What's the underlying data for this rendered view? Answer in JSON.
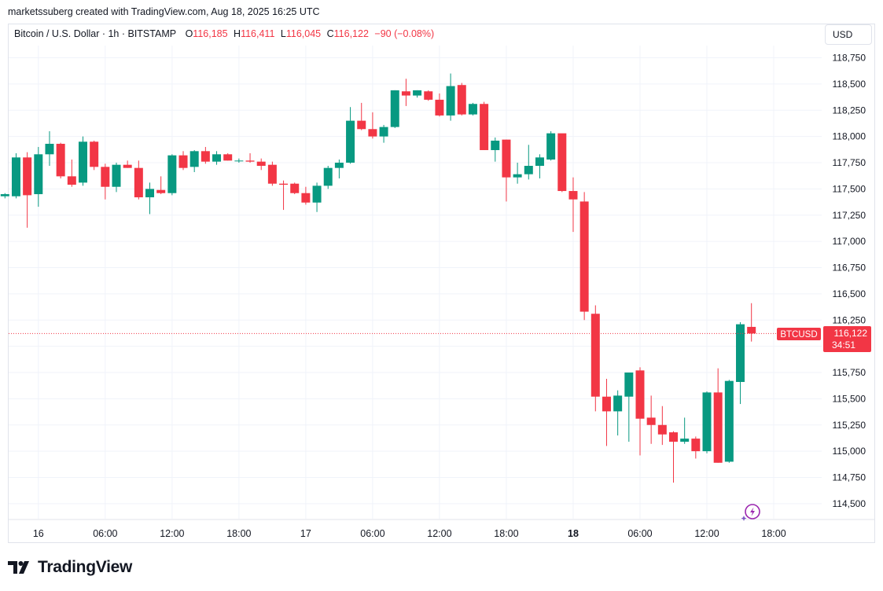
{
  "header": {
    "credit": "marketssuberg created with TradingView.com, Aug 18, 2025 16:25 UTC"
  },
  "legend": {
    "symbol": "Bitcoin / U.S. Dollar · 1h · BITSTAMP",
    "o_label": "O",
    "o_value": "116,185",
    "h_label": "H",
    "h_value": "116,411",
    "l_label": "L",
    "l_value": "116,045",
    "c_label": "C",
    "c_value": "116,122",
    "change": "−90 (−0.08%)"
  },
  "currency_button": "USD",
  "price_tag": {
    "symbol": "BTCUSD",
    "price": "116,122",
    "countdown": "34:51"
  },
  "brand": {
    "name": "TradingView"
  },
  "colors": {
    "up": "#089981",
    "down": "#f23645",
    "grid": "#f0f3fa",
    "text": "#131722"
  },
  "chart_data": {
    "type": "candlestick",
    "symbol": "BTCUSD",
    "timeframe": "1h",
    "ylim": [
      114400,
      118900
    ],
    "y_ticks": [
      "118,750",
      "118,500",
      "118,250",
      "118,000",
      "117,750",
      "117,500",
      "117,250",
      "117,000",
      "116,750",
      "116,500",
      "116,250",
      "116,000",
      "115,750",
      "115,500",
      "115,250",
      "115,000",
      "114,750",
      "114,500"
    ],
    "y_tick_values": [
      118750,
      118500,
      118250,
      118000,
      117750,
      117500,
      117250,
      117000,
      116750,
      116500,
      116250,
      116000,
      115750,
      115500,
      115250,
      115000,
      114750,
      114500
    ],
    "x_ticks": [
      {
        "label": "16",
        "bar": 3,
        "bold": false
      },
      {
        "label": "06:00",
        "bar": 9,
        "bold": false
      },
      {
        "label": "12:00",
        "bar": 15,
        "bold": false
      },
      {
        "label": "18:00",
        "bar": 21,
        "bold": false
      },
      {
        "label": "17",
        "bar": 27,
        "bold": false
      },
      {
        "label": "06:00",
        "bar": 33,
        "bold": false
      },
      {
        "label": "12:00",
        "bar": 39,
        "bold": false
      },
      {
        "label": "18:00",
        "bar": 45,
        "bold": false
      },
      {
        "label": "18",
        "bar": 51,
        "bold": true
      },
      {
        "label": "06:00",
        "bar": 57,
        "bold": false
      },
      {
        "label": "12:00",
        "bar": 63,
        "bold": false
      },
      {
        "label": "18:00",
        "bar": 69,
        "bold": false
      }
    ],
    "last_price": 116122,
    "candles": [
      {
        "o": 117430,
        "h": 117460,
        "l": 117410,
        "c": 117450
      },
      {
        "o": 117430,
        "h": 117840,
        "l": 117410,
        "c": 117800
      },
      {
        "o": 117800,
        "h": 117850,
        "l": 117130,
        "c": 117440
      },
      {
        "o": 117450,
        "h": 117900,
        "l": 117330,
        "c": 117830
      },
      {
        "o": 117830,
        "h": 118050,
        "l": 117720,
        "c": 117930
      },
      {
        "o": 117930,
        "h": 117940,
        "l": 117600,
        "c": 117620
      },
      {
        "o": 117620,
        "h": 117780,
        "l": 117520,
        "c": 117540
      },
      {
        "o": 117560,
        "h": 118000,
        "l": 117530,
        "c": 117950
      },
      {
        "o": 117950,
        "h": 117960,
        "l": 117680,
        "c": 117710
      },
      {
        "o": 117710,
        "h": 117740,
        "l": 117400,
        "c": 117520
      },
      {
        "o": 117520,
        "h": 117750,
        "l": 117470,
        "c": 117730
      },
      {
        "o": 117730,
        "h": 117770,
        "l": 117700,
        "c": 117700
      },
      {
        "o": 117700,
        "h": 117770,
        "l": 117400,
        "c": 117420
      },
      {
        "o": 117420,
        "h": 117560,
        "l": 117260,
        "c": 117500
      },
      {
        "o": 117490,
        "h": 117620,
        "l": 117450,
        "c": 117460
      },
      {
        "o": 117460,
        "h": 117830,
        "l": 117440,
        "c": 117820
      },
      {
        "o": 117820,
        "h": 117860,
        "l": 117680,
        "c": 117700
      },
      {
        "o": 117710,
        "h": 117870,
        "l": 117660,
        "c": 117860
      },
      {
        "o": 117860,
        "h": 117900,
        "l": 117740,
        "c": 117760
      },
      {
        "o": 117760,
        "h": 117860,
        "l": 117730,
        "c": 117830
      },
      {
        "o": 117830,
        "h": 117840,
        "l": 117770,
        "c": 117770
      },
      {
        "o": 117770,
        "h": 117790,
        "l": 117750,
        "c": 117770
      },
      {
        "o": 117770,
        "h": 117840,
        "l": 117750,
        "c": 117760
      },
      {
        "o": 117760,
        "h": 117790,
        "l": 117680,
        "c": 117720
      },
      {
        "o": 117730,
        "h": 117760,
        "l": 117530,
        "c": 117550
      },
      {
        "o": 117550,
        "h": 117580,
        "l": 117300,
        "c": 117540
      },
      {
        "o": 117550,
        "h": 117560,
        "l": 117450,
        "c": 117460
      },
      {
        "o": 117460,
        "h": 117520,
        "l": 117350,
        "c": 117370
      },
      {
        "o": 117370,
        "h": 117560,
        "l": 117280,
        "c": 117530
      },
      {
        "o": 117530,
        "h": 117720,
        "l": 117500,
        "c": 117700
      },
      {
        "o": 117700,
        "h": 117780,
        "l": 117600,
        "c": 117750
      },
      {
        "o": 117750,
        "h": 118280,
        "l": 117740,
        "c": 118150
      },
      {
        "o": 118150,
        "h": 118320,
        "l": 118060,
        "c": 118070
      },
      {
        "o": 118070,
        "h": 118230,
        "l": 117980,
        "c": 118000
      },
      {
        "o": 118000,
        "h": 118110,
        "l": 117940,
        "c": 118090
      },
      {
        "o": 118090,
        "h": 118440,
        "l": 118080,
        "c": 118440
      },
      {
        "o": 118430,
        "h": 118550,
        "l": 118290,
        "c": 118390
      },
      {
        "o": 118390,
        "h": 118440,
        "l": 118370,
        "c": 118440
      },
      {
        "o": 118430,
        "h": 118440,
        "l": 118340,
        "c": 118350
      },
      {
        "o": 118350,
        "h": 118410,
        "l": 118190,
        "c": 118200
      },
      {
        "o": 118200,
        "h": 118600,
        "l": 118150,
        "c": 118480
      },
      {
        "o": 118490,
        "h": 118510,
        "l": 118200,
        "c": 118210
      },
      {
        "o": 118210,
        "h": 118320,
        "l": 118200,
        "c": 118310
      },
      {
        "o": 118310,
        "h": 118330,
        "l": 117870,
        "c": 117870
      },
      {
        "o": 117870,
        "h": 117990,
        "l": 117760,
        "c": 117960
      },
      {
        "o": 117970,
        "h": 117970,
        "l": 117380,
        "c": 117610
      },
      {
        "o": 117610,
        "h": 117750,
        "l": 117550,
        "c": 117640
      },
      {
        "o": 117640,
        "h": 117920,
        "l": 117590,
        "c": 117720
      },
      {
        "o": 117720,
        "h": 117830,
        "l": 117600,
        "c": 117800
      },
      {
        "o": 117780,
        "h": 118050,
        "l": 117770,
        "c": 118030
      },
      {
        "o": 118030,
        "h": 118020,
        "l": 117470,
        "c": 117480
      },
      {
        "o": 117480,
        "h": 117610,
        "l": 117090,
        "c": 117400
      },
      {
        "o": 117380,
        "h": 117470,
        "l": 116250,
        "c": 116330
      },
      {
        "o": 116310,
        "h": 116390,
        "l": 115380,
        "c": 115520
      },
      {
        "o": 115520,
        "h": 115690,
        "l": 115050,
        "c": 115380
      },
      {
        "o": 115380,
        "h": 115580,
        "l": 115150,
        "c": 115530
      },
      {
        "o": 115520,
        "h": 115750,
        "l": 115090,
        "c": 115750
      },
      {
        "o": 115770,
        "h": 115800,
        "l": 114960,
        "c": 115310
      },
      {
        "o": 115320,
        "h": 115530,
        "l": 115070,
        "c": 115250
      },
      {
        "o": 115250,
        "h": 115430,
        "l": 115060,
        "c": 115160
      },
      {
        "o": 115180,
        "h": 115190,
        "l": 114700,
        "c": 115090
      },
      {
        "o": 115090,
        "h": 115320,
        "l": 115070,
        "c": 115120
      },
      {
        "o": 115120,
        "h": 115140,
        "l": 114930,
        "c": 115000
      },
      {
        "o": 115000,
        "h": 115570,
        "l": 114980,
        "c": 115560
      },
      {
        "o": 115560,
        "h": 115790,
        "l": 114890,
        "c": 114890
      },
      {
        "o": 114900,
        "h": 115680,
        "l": 114890,
        "c": 115670
      },
      {
        "o": 115660,
        "h": 116230,
        "l": 115450,
        "c": 116210
      },
      {
        "o": 116185,
        "h": 116411,
        "l": 116045,
        "c": 116122
      }
    ]
  }
}
